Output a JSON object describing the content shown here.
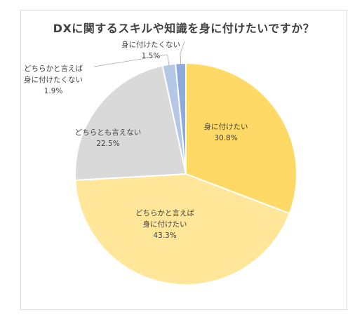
{
  "chart_data": {
    "type": "pie",
    "title": "DXに関するスキルや知識を身に付けたいですか？",
    "slices": [
      {
        "label_lines": [
          "身に付けたい"
        ],
        "value": 30.8,
        "value_label": "30.8%",
        "color": "#ffd966"
      },
      {
        "label_lines": [
          "どちらかと言えば",
          "身に付けたい"
        ],
        "value": 43.3,
        "value_label": "43.3%",
        "color": "#ffe699"
      },
      {
        "label_lines": [
          "どちらとも言えない"
        ],
        "value": 22.5,
        "value_label": "22.5%",
        "color": "#d9d9d9"
      },
      {
        "label_lines": [
          "どちらかと言えば",
          "身に付けたくない"
        ],
        "value": 1.9,
        "value_label": "1.9%",
        "color": "#b4c7e7"
      },
      {
        "label_lines": [
          "身に付けたくない"
        ],
        "value": 1.5,
        "value_label": "1.5%",
        "color": "#8faadc"
      }
    ]
  }
}
